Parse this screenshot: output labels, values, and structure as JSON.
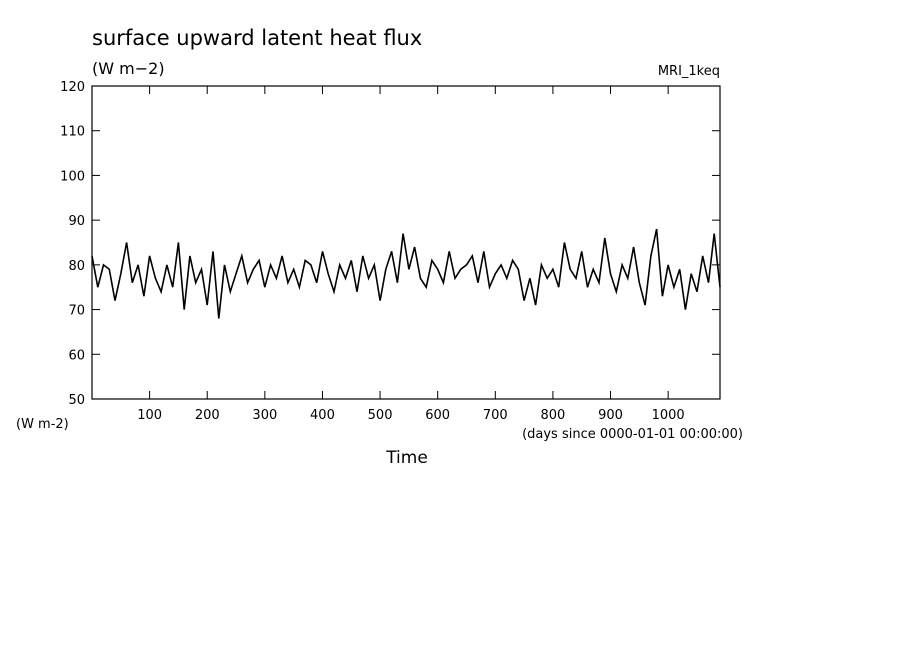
{
  "chart_data": {
    "type": "line",
    "title": "surface upward latent heat flux",
    "subtitle": "(W m−2)",
    "annotation": "MRI_1keq",
    "y_unit": "(W m-2)",
    "x_unit": "(days since 0000-01-01 00:00:00)",
    "xlabel": "Time",
    "x": [
      0,
      10,
      20,
      30,
      40,
      50,
      60,
      70,
      80,
      90,
      100,
      110,
      120,
      130,
      140,
      150,
      160,
      170,
      180,
      190,
      200,
      210,
      220,
      230,
      240,
      250,
      260,
      270,
      280,
      290,
      300,
      310,
      320,
      330,
      340,
      350,
      360,
      370,
      380,
      390,
      400,
      410,
      420,
      430,
      440,
      450,
      460,
      470,
      480,
      490,
      500,
      510,
      520,
      530,
      540,
      550,
      560,
      570,
      580,
      590,
      600,
      610,
      620,
      630,
      640,
      650,
      660,
      670,
      680,
      690,
      700,
      710,
      720,
      730,
      740,
      750,
      760,
      770,
      780,
      790,
      800,
      810,
      820,
      830,
      840,
      850,
      860,
      870,
      880,
      890,
      900,
      910,
      920,
      930,
      940,
      950,
      960,
      970,
      980,
      990,
      1000,
      1010,
      1020,
      1030,
      1040,
      1050,
      1060,
      1070,
      1080,
      1090
    ],
    "series": [
      {
        "name": "MRI_1keq",
        "color": "#000000",
        "values": [
          82,
          75,
          80,
          79,
          72,
          78,
          85,
          76,
          80,
          73,
          82,
          77,
          74,
          80,
          75,
          85,
          70,
          82,
          76,
          79,
          71,
          83,
          68,
          80,
          74,
          78,
          82,
          76,
          79,
          81,
          75,
          80,
          77,
          82,
          76,
          79,
          75,
          81,
          80,
          76,
          83,
          78,
          74,
          80,
          77,
          81,
          74,
          82,
          77,
          80,
          72,
          79,
          83,
          76,
          87,
          79,
          84,
          77,
          75,
          81,
          79,
          76,
          83,
          77,
          79,
          80,
          82,
          76,
          83,
          75,
          78,
          80,
          77,
          81,
          79,
          72,
          77,
          71,
          80,
          77,
          79,
          75,
          85,
          79,
          77,
          83,
          75,
          79,
          76,
          86,
          78,
          74,
          80,
          77,
          84,
          76,
          71,
          82,
          88,
          73,
          80,
          75,
          79,
          70,
          78,
          74,
          82,
          76,
          87,
          75
        ]
      }
    ],
    "xlim": [
      0,
      1090
    ],
    "ylim": [
      50,
      120
    ],
    "xticks": [
      100,
      200,
      300,
      400,
      500,
      600,
      700,
      800,
      900,
      1000
    ],
    "yticks": [
      50,
      60,
      70,
      80,
      90,
      100,
      110,
      120
    ]
  }
}
